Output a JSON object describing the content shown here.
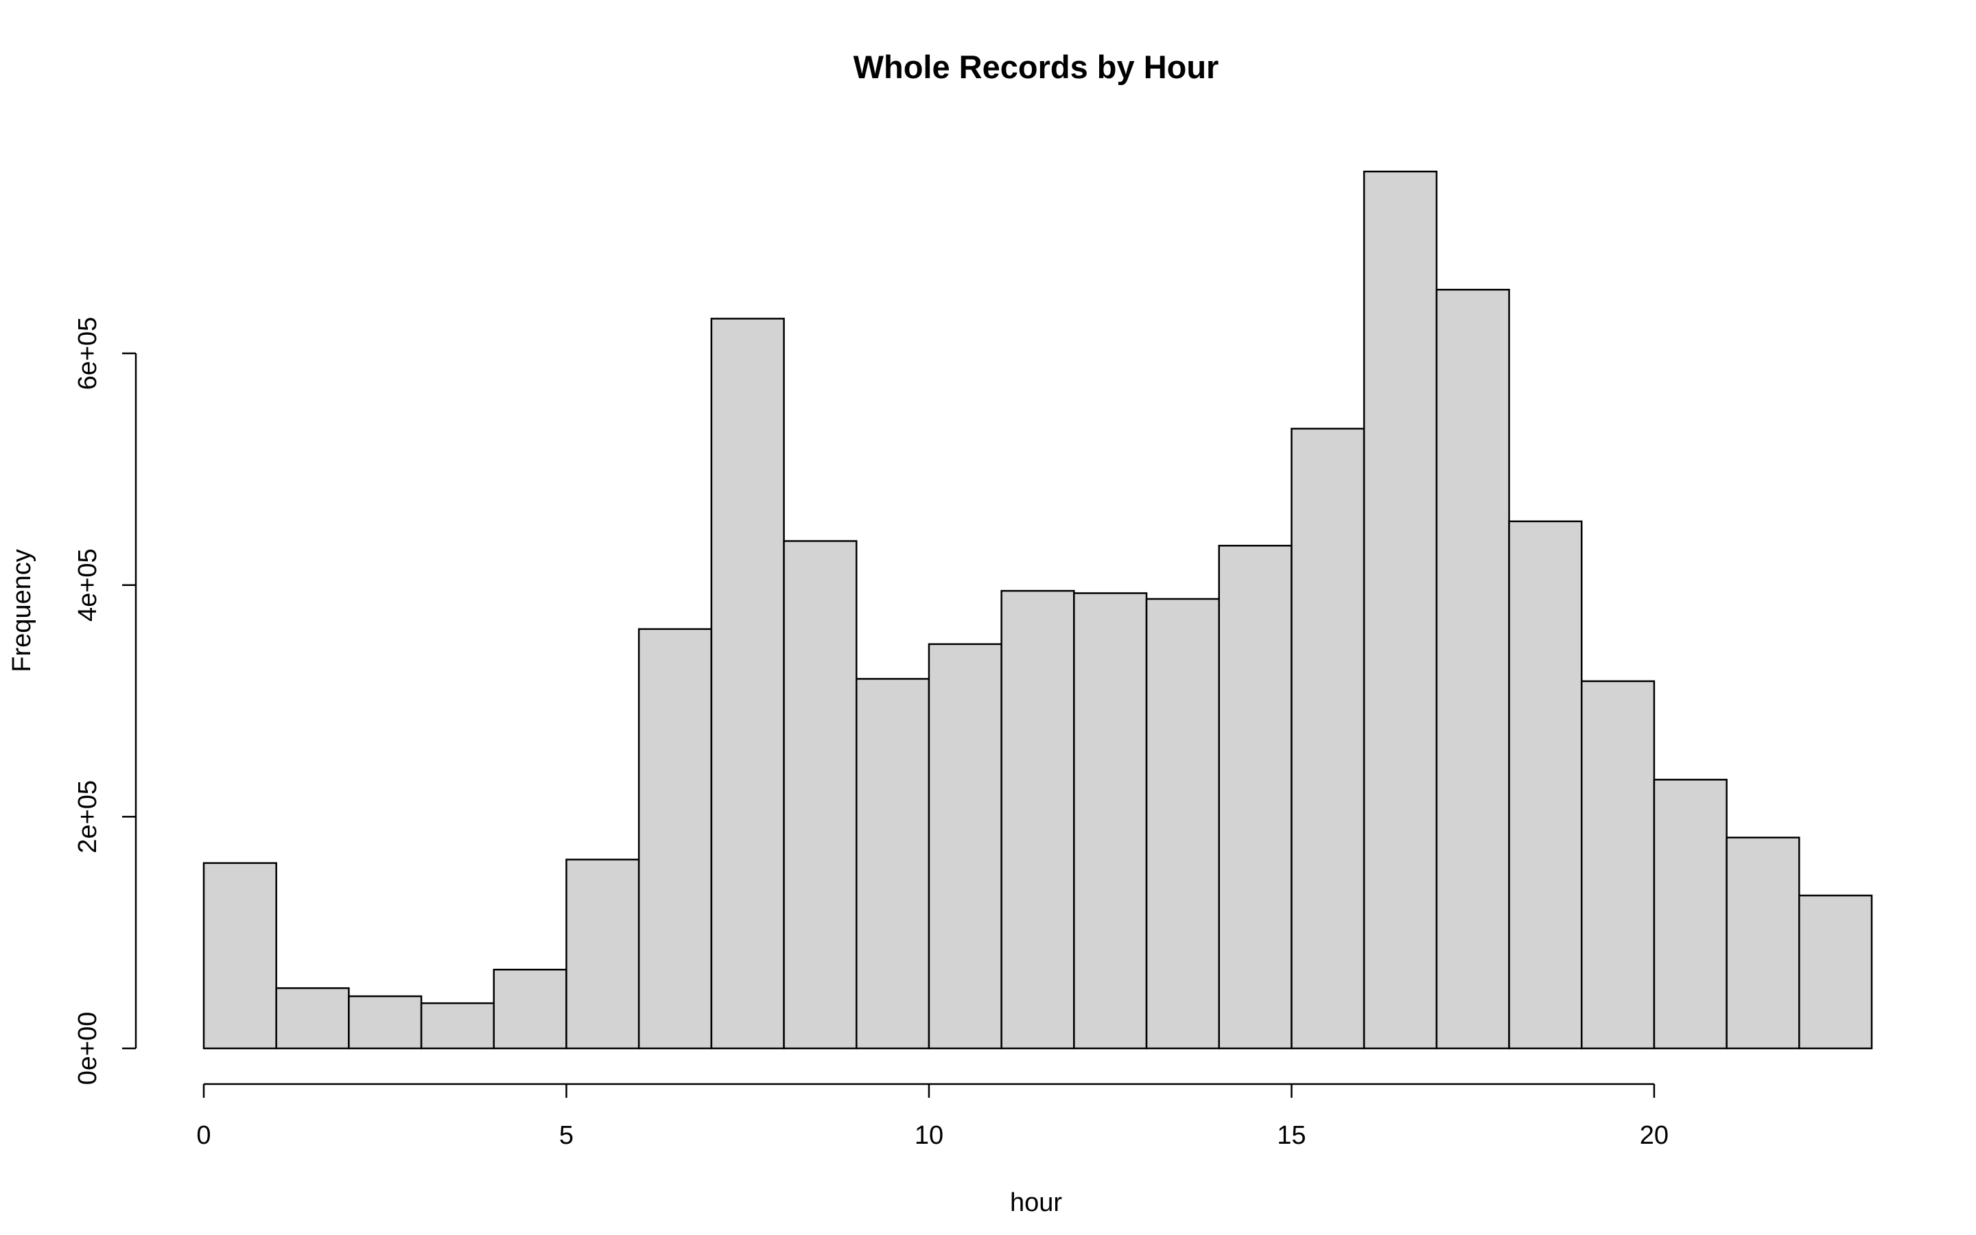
{
  "chart_data": {
    "type": "bar",
    "title": "Whole Records by Hour",
    "xlabel": "hour",
    "ylabel": "Frequency",
    "bin_edges": [
      0,
      1,
      2,
      3,
      4,
      5,
      6,
      7,
      8,
      9,
      10,
      11,
      12,
      13,
      14,
      15,
      16,
      17,
      18,
      19,
      20,
      21,
      22,
      23
    ],
    "values": [
      160000,
      52000,
      45000,
      39000,
      68000,
      163000,
      362000,
      630000,
      438000,
      319000,
      349000,
      395000,
      393000,
      388000,
      434000,
      535000,
      757000,
      655000,
      455000,
      317000,
      232000,
      182000,
      132000
    ],
    "xlim": [
      0,
      23
    ],
    "ylim": [
      0,
      757000
    ],
    "x_ticks": [
      0,
      5,
      10,
      15,
      20
    ],
    "x_tick_labels": [
      "0",
      "5",
      "10",
      "15",
      "20"
    ],
    "y_ticks": [
      0,
      200000,
      400000,
      600000
    ],
    "y_tick_labels": [
      "0e+00",
      "2e+05",
      "4e+05",
      "6e+05"
    ],
    "bar_color": "#d3d3d3",
    "grid": false,
    "legend": "none"
  }
}
